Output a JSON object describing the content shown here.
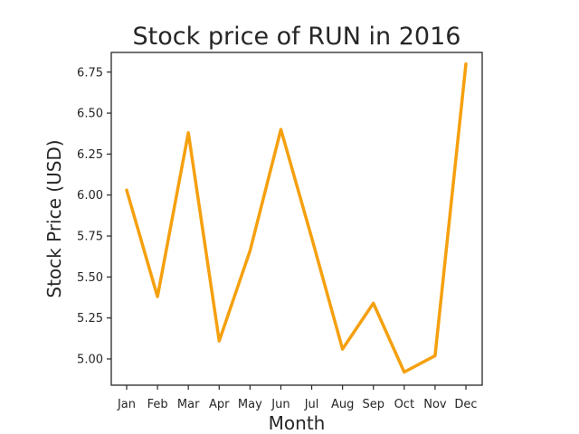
{
  "chart_data": {
    "type": "line",
    "title": "Stock price of RUN in 2016",
    "xlabel": "Month",
    "ylabel": "Stock Price (USD)",
    "categories": [
      "Jan",
      "Feb",
      "Mar",
      "Apr",
      "May",
      "Jun",
      "Jul",
      "Aug",
      "Sep",
      "Oct",
      "Nov",
      "Dec"
    ],
    "values": [
      6.03,
      5.38,
      6.38,
      5.11,
      5.66,
      6.4,
      5.74,
      5.06,
      5.34,
      4.92,
      5.02,
      6.8
    ],
    "ylim": [
      4.84,
      6.87
    ],
    "yticks": [
      "5.00",
      "5.25",
      "5.50",
      "5.75",
      "6.00",
      "6.25",
      "6.50",
      "6.75"
    ],
    "line_color": "#f5a00f",
    "grid": false,
    "legend": false
  }
}
